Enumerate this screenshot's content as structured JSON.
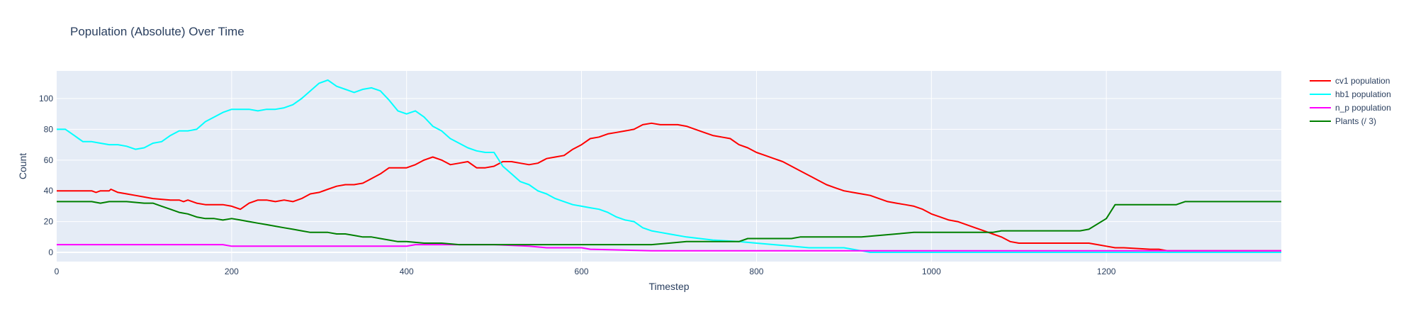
{
  "chart_data": {
    "type": "line",
    "title": "Population (Absolute) Over Time",
    "xlabel": "Timestep",
    "ylabel": "Count",
    "xlim": [
      0,
      1400
    ],
    "ylim": [
      -6,
      118
    ],
    "x_ticks": [
      0,
      200,
      400,
      600,
      800,
      1000,
      1200
    ],
    "y_ticks": [
      0,
      20,
      40,
      60,
      80,
      100
    ],
    "grid": true,
    "legend_position": "top-right",
    "colors": {
      "plot_bg": "#e5ecf6",
      "grid": "#ffffff",
      "text": "#2a3f5f"
    },
    "series": [
      {
        "name": "cv1 population",
        "color": "#ff0000",
        "x": [
          0,
          20,
          40,
          45,
          50,
          60,
          62,
          70,
          80,
          90,
          100,
          110,
          130,
          140,
          145,
          150,
          160,
          170,
          190,
          200,
          210,
          220,
          230,
          240,
          250,
          260,
          270,
          280,
          290,
          300,
          310,
          320,
          330,
          340,
          350,
          360,
          370,
          380,
          390,
          400,
          410,
          420,
          430,
          440,
          450,
          460,
          470,
          480,
          490,
          500,
          510,
          520,
          530,
          540,
          550,
          560,
          570,
          580,
          590,
          600,
          610,
          620,
          630,
          640,
          650,
          660,
          670,
          680,
          690,
          700,
          710,
          720,
          730,
          740,
          750,
          760,
          770,
          780,
          790,
          800,
          810,
          820,
          830,
          840,
          850,
          860,
          870,
          880,
          890,
          900,
          910,
          920,
          930,
          940,
          950,
          960,
          970,
          980,
          990,
          1000,
          1010,
          1020,
          1030,
          1040,
          1050,
          1060,
          1070,
          1080,
          1090,
          1100,
          1180,
          1190,
          1200,
          1210,
          1220,
          1250,
          1260,
          1270,
          1400
        ],
        "values": [
          40,
          40,
          40,
          39,
          40,
          40,
          41,
          39,
          38,
          37,
          36,
          35,
          34,
          34,
          33,
          34,
          32,
          31,
          31,
          30,
          28,
          32,
          34,
          34,
          33,
          34,
          33,
          35,
          38,
          39,
          41,
          43,
          44,
          44,
          45,
          48,
          51,
          55,
          55,
          55,
          57,
          60,
          62,
          60,
          57,
          58,
          59,
          55,
          55,
          56,
          59,
          59,
          58,
          57,
          58,
          61,
          62,
          63,
          67,
          70,
          74,
          75,
          77,
          78,
          79,
          80,
          83,
          84,
          83,
          83,
          83,
          82,
          80,
          78,
          76,
          75,
          74,
          70,
          68,
          65,
          63,
          61,
          59,
          56,
          53,
          50,
          47,
          44,
          42,
          40,
          39,
          38,
          37,
          35,
          33,
          32,
          31,
          30,
          28,
          25,
          23,
          21,
          20,
          18,
          16,
          14,
          12,
          10,
          7,
          6,
          6,
          5,
          4,
          3,
          3,
          2,
          2,
          1,
          1
        ]
      },
      {
        "name": "hb1 population",
        "color": "#00ffff",
        "x": [
          0,
          10,
          20,
          25,
          30,
          40,
          50,
          60,
          70,
          80,
          90,
          100,
          110,
          120,
          130,
          140,
          150,
          160,
          170,
          180,
          190,
          200,
          210,
          220,
          230,
          240,
          250,
          260,
          270,
          280,
          290,
          300,
          310,
          320,
          330,
          340,
          350,
          360,
          370,
          380,
          390,
          400,
          410,
          420,
          430,
          440,
          450,
          460,
          470,
          480,
          490,
          500,
          510,
          520,
          530,
          540,
          550,
          560,
          570,
          580,
          590,
          600,
          610,
          620,
          630,
          640,
          650,
          660,
          670,
          680,
          690,
          700,
          720,
          750,
          780,
          800,
          820,
          840,
          860,
          880,
          900,
          910,
          920,
          930,
          1400
        ],
        "values": [
          80,
          80,
          76,
          74,
          72,
          72,
          71,
          70,
          70,
          69,
          67,
          68,
          71,
          72,
          76,
          79,
          79,
          80,
          85,
          88,
          91,
          93,
          93,
          93,
          92,
          93,
          93,
          94,
          96,
          100,
          105,
          110,
          112,
          108,
          106,
          104,
          106,
          107,
          105,
          99,
          92,
          90,
          92,
          88,
          82,
          79,
          74,
          71,
          68,
          66,
          65,
          65,
          56,
          51,
          46,
          44,
          40,
          38,
          35,
          33,
          31,
          30,
          29,
          28,
          26,
          23,
          21,
          20,
          16,
          14,
          13,
          12,
          10,
          8,
          7,
          6,
          5,
          4,
          3,
          3,
          3,
          2,
          1,
          0,
          0
        ]
      },
      {
        "name": "n_p population",
        "color": "#ff00ff",
        "x": [
          0,
          190,
          200,
          400,
          410,
          500,
          540,
          560,
          600,
          610,
          680,
          1400
        ],
        "values": [
          5,
          5,
          4,
          4,
          5,
          5,
          4,
          3,
          3,
          2,
          1,
          1
        ]
      },
      {
        "name": "Plants (/ 3)",
        "color": "#008000",
        "x": [
          0,
          20,
          40,
          50,
          60,
          80,
          100,
          110,
          120,
          130,
          140,
          150,
          160,
          170,
          180,
          190,
          200,
          210,
          220,
          230,
          240,
          250,
          260,
          270,
          280,
          290,
          300,
          310,
          320,
          330,
          340,
          350,
          360,
          370,
          380,
          390,
          400,
          420,
          440,
          460,
          480,
          500,
          540,
          580,
          620,
          660,
          680,
          700,
          720,
          780,
          790,
          840,
          850,
          920,
          940,
          960,
          980,
          1070,
          1080,
          1170,
          1180,
          1200,
          1210,
          1280,
          1290,
          1400
        ],
        "values": [
          33,
          33,
          33,
          32,
          33,
          33,
          32,
          32,
          30,
          28,
          26,
          25,
          23,
          22,
          22,
          21,
          22,
          21,
          20,
          19,
          18,
          17,
          16,
          15,
          14,
          13,
          13,
          13,
          12,
          12,
          11,
          10,
          10,
          9,
          8,
          7,
          7,
          6,
          6,
          5,
          5,
          5,
          5,
          5,
          5,
          5,
          5,
          6,
          7,
          7,
          9,
          9,
          10,
          10,
          11,
          12,
          13,
          13,
          14,
          14,
          15,
          22,
          31,
          31,
          33,
          33
        ]
      }
    ]
  }
}
